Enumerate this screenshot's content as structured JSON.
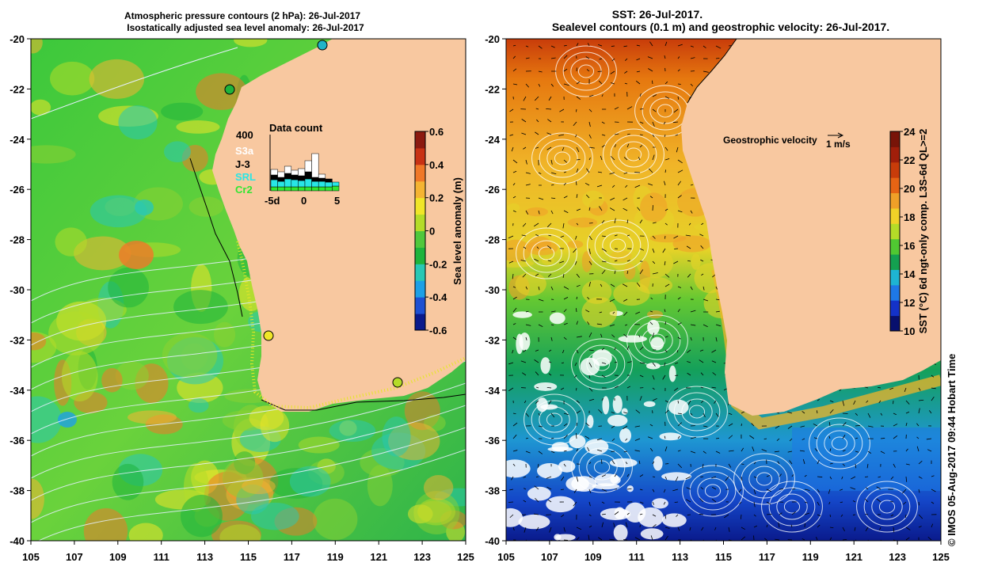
{
  "left_panel": {
    "title_line1": "Atmospheric pressure contours (2 hPa): 26-Jul-2017",
    "title_line2": "Isostatically adjusted sea level anomaly: 26-Jul-2017",
    "colorbar": {
      "label": "Sea level anomaly (m)",
      "ticks": [
        "0.6",
        "0.4",
        "0.2",
        "0",
        "-0.2",
        "-0.4",
        "-0.6"
      ],
      "colors": [
        "#0a1a8c",
        "#1e50d2",
        "#1ea0e6",
        "#28c8b4",
        "#1eb43c",
        "#50c83c",
        "#b4dc28",
        "#f0e628",
        "#f5b432",
        "#f07828",
        "#c83214",
        "#8c1a10"
      ]
    },
    "data_count": {
      "title": "Data count",
      "max_label": "400",
      "satellites": [
        {
          "name": "S3a",
          "color": "#ffffff"
        },
        {
          "name": "J-3",
          "color": "#000000"
        },
        {
          "name": "SRL",
          "color": "#28e6e6"
        },
        {
          "name": "Cr2",
          "color": "#32e632"
        }
      ],
      "x_ticks": [
        "-5d",
        "0",
        "5"
      ]
    }
  },
  "right_panel": {
    "title_line1": "SST: 26-Jul-2017.",
    "title_line2": "Sealevel contours (0.1 m) and geostrophic velocity: 26-Jul-2017.",
    "velocity_label": "Geostrophic velocity",
    "velocity_scale": "1 m/s",
    "colorbar": {
      "label": "SST (°C) 6d ngt-only comp. L3S-6d QL>=2",
      "ticks": [
        "24",
        "22",
        "20",
        "18",
        "16",
        "14",
        "12",
        "10"
      ],
      "colors": [
        "#08106e",
        "#1432c8",
        "#1e78e6",
        "#1eb4d2",
        "#14a050",
        "#50c832",
        "#b4dc28",
        "#f0d228",
        "#f0a028",
        "#e66414",
        "#c83c0a",
        "#a01e0a",
        "#781408"
      ]
    }
  },
  "axes": {
    "lat_ticks": [
      "-20",
      "-22",
      "-24",
      "-26",
      "-28",
      "-30",
      "-32",
      "-34",
      "-36",
      "-38",
      "-40"
    ],
    "lon_ticks": [
      "105",
      "107",
      "109",
      "111",
      "113",
      "115",
      "117",
      "119",
      "121",
      "123",
      "125"
    ]
  },
  "credit": "© IMOS 05-Aug-2017 09:44 Hobart Time",
  "colors": {
    "land": "#f8c8a0"
  }
}
